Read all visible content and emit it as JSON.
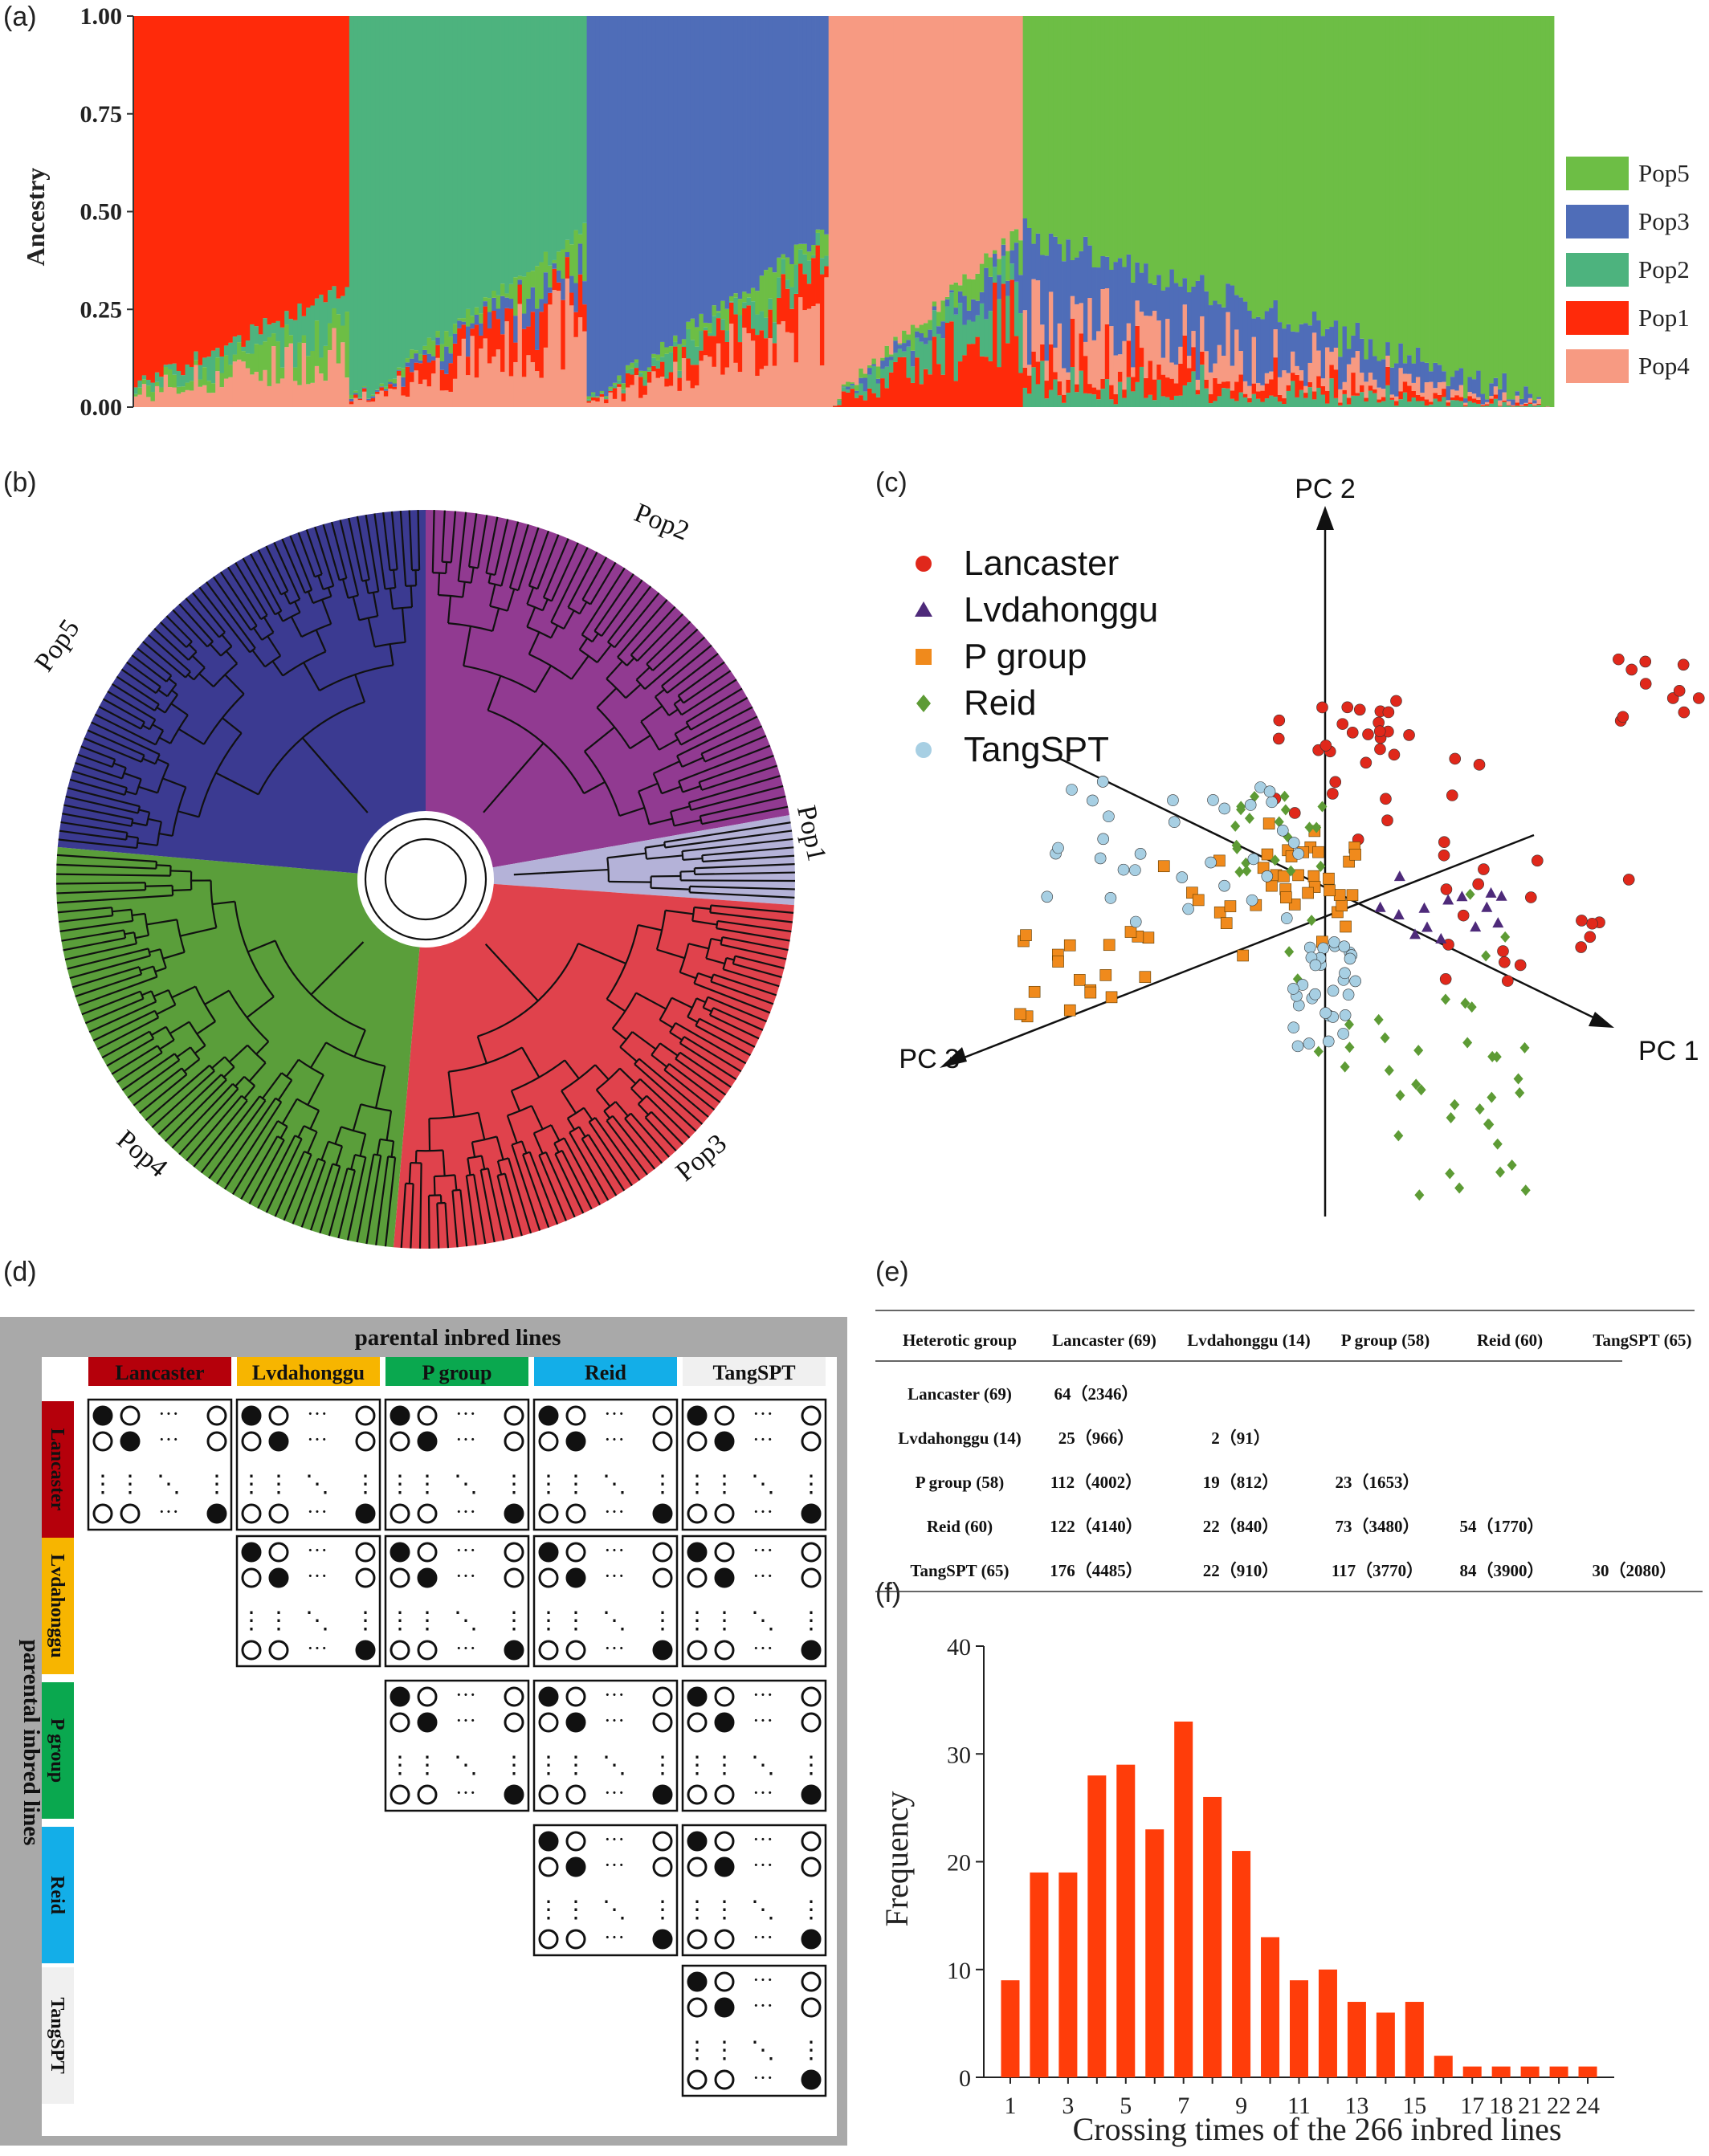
{
  "panel_labels": {
    "a": "(a)",
    "b": "(b)",
    "c": "(c)",
    "d": "(d)",
    "e": "(e)",
    "f": "(f)"
  },
  "colors": {
    "Pop5": "#6dbe45",
    "Pop3": "#4f6db8",
    "Pop2": "#4db37e",
    "Pop1": "#ff2a0a",
    "Pop4": "#f79a82",
    "tree_pop5": "#3b3a91",
    "tree_pop2": "#913a91",
    "tree_pop1": "#b4b2d8",
    "tree_pop3": "#e0424c",
    "tree_pop4": "#5a9e3a",
    "lancaster": "#b5000b",
    "lvdahonggu": "#f7b500",
    "pgroup": "#0aa84f",
    "reid": "#13aee8",
    "tangspt": "#f0f0f0",
    "bar_f": "#ff3d0a"
  },
  "chart_data": [
    {
      "panel": "a",
      "type": "bar",
      "ylabel": "Ancestry",
      "ylim": [
        0,
        1
      ],
      "yticks": [
        "0.00",
        "0.25",
        "0.50",
        "0.75",
        "1.00"
      ],
      "legend": [
        "Pop5",
        "Pop3",
        "Pop2",
        "Pop1",
        "Pop4"
      ],
      "legend_position": "right",
      "blocks": [
        {
          "group": "Pop1",
          "count": 50,
          "main": [
            0.95,
            0.7
          ],
          "others": [
            "Pop4",
            "Pop5",
            "Pop2"
          ]
        },
        {
          "group": "Pop2",
          "count": 55,
          "main": [
            0.99,
            0.55
          ],
          "others": [
            "Pop4",
            "Pop1",
            "Pop3",
            "Pop5"
          ]
        },
        {
          "group": "Pop3",
          "count": 56,
          "main": [
            0.99,
            0.55
          ],
          "others": [
            "Pop4",
            "Pop1",
            "Pop2",
            "Pop5"
          ]
        },
        {
          "group": "Pop4",
          "count": 45,
          "main": [
            0.99,
            0.55
          ],
          "others": [
            "Pop1",
            "Pop2",
            "Pop3",
            "Pop5"
          ]
        },
        {
          "group": "Pop5",
          "count": 123,
          "main": [
            0.5,
            1.0
          ],
          "others": [
            "Pop3",
            "Pop4",
            "Pop1",
            "Pop2"
          ]
        }
      ]
    },
    {
      "panel": "b",
      "type": "dendrogram",
      "clusters": [
        {
          "name": "Pop2",
          "color": "tree_pop2",
          "start_deg": -90,
          "end_deg": -10,
          "leaves": 48
        },
        {
          "name": "Pop1",
          "color": "tree_pop1",
          "start_deg": -10,
          "end_deg": 4,
          "leaves": 10
        },
        {
          "name": "Pop3",
          "color": "tree_pop3",
          "start_deg": 4,
          "end_deg": 95,
          "leaves": 62
        },
        {
          "name": "Pop4",
          "color": "tree_pop4",
          "start_deg": 95,
          "end_deg": 185,
          "leaves": 60
        },
        {
          "name": "Pop5",
          "color": "tree_pop5",
          "start_deg": 185,
          "end_deg": 270,
          "leaves": 62
        }
      ]
    },
    {
      "panel": "c",
      "type": "scatter",
      "axes": [
        "PC 1",
        "PC 2",
        "PC 3"
      ],
      "series": [
        {
          "name": "Lancaster",
          "marker": "circle",
          "color": "#e0281b",
          "n": 69
        },
        {
          "name": "Lvdahonggu",
          "marker": "triangle",
          "color": "#4e2a7a",
          "n": 14
        },
        {
          "name": "P group",
          "marker": "square",
          "color": "#f08a1c",
          "n": 58
        },
        {
          "name": "Reid",
          "marker": "diamond",
          "color": "#5d9b35",
          "n": 60
        },
        {
          "name": "TangSPT",
          "marker": "circle",
          "color": "#a7cfe3",
          "n": 65
        }
      ]
    },
    {
      "panel": "d",
      "type": "table",
      "title": "parental inbred lines",
      "row_title": "parental inbred lines",
      "groups": [
        "Lancaster",
        "Lvdahonggu",
        "P group",
        "Reid",
        "TangSPT"
      ]
    },
    {
      "panel": "e",
      "type": "table",
      "headers": [
        "Heterotic group",
        "Lancaster (69)",
        "Lvdahonggu (14)",
        "P group (58)",
        "Reid (60)",
        "TangSPT (65)"
      ],
      "rows": [
        {
          "label": "Lancaster (69)",
          "cells": [
            "64（2346）",
            "",
            "",
            "",
            ""
          ]
        },
        {
          "label": "Lvdahonggu (14)",
          "cells": [
            "25（966）",
            "2（91）",
            "",
            "",
            ""
          ]
        },
        {
          "label": "P group (58)",
          "cells": [
            "112（4002）",
            "19（812）",
            "23（1653）",
            "",
            ""
          ]
        },
        {
          "label": "Reid (60)",
          "cells": [
            "122（4140）",
            "22（840）",
            "73（3480）",
            "54（1770）",
            ""
          ]
        },
        {
          "label": "TangSPT (65)",
          "cells": [
            "176（4485）",
            "22（910）",
            "117（3770）",
            "84（3900）",
            "30（2080）"
          ]
        }
      ]
    },
    {
      "panel": "f",
      "type": "bar",
      "xlabel": "Crossing times of the 266 inbred lines",
      "ylabel": "Frequency",
      "ylim": [
        0,
        40
      ],
      "yticks": [
        "0",
        "10",
        "20",
        "30",
        "40"
      ],
      "categories": [
        "1",
        "2",
        "3",
        "4",
        "5",
        "6",
        "7",
        "8",
        "9",
        "10",
        "11",
        "12",
        "13",
        "14",
        "15",
        "16",
        "17",
        "18",
        "21",
        "22",
        "24"
      ],
      "xtick_labels": [
        "1",
        "3",
        "5",
        "7",
        "9",
        "11",
        "13",
        "15",
        "17",
        "18",
        "21",
        "22",
        "24"
      ],
      "values": [
        9,
        19,
        19,
        28,
        29,
        23,
        33,
        26,
        21,
        13,
        9,
        10,
        7,
        6,
        7,
        2,
        1,
        1,
        1,
        1,
        1
      ]
    }
  ]
}
